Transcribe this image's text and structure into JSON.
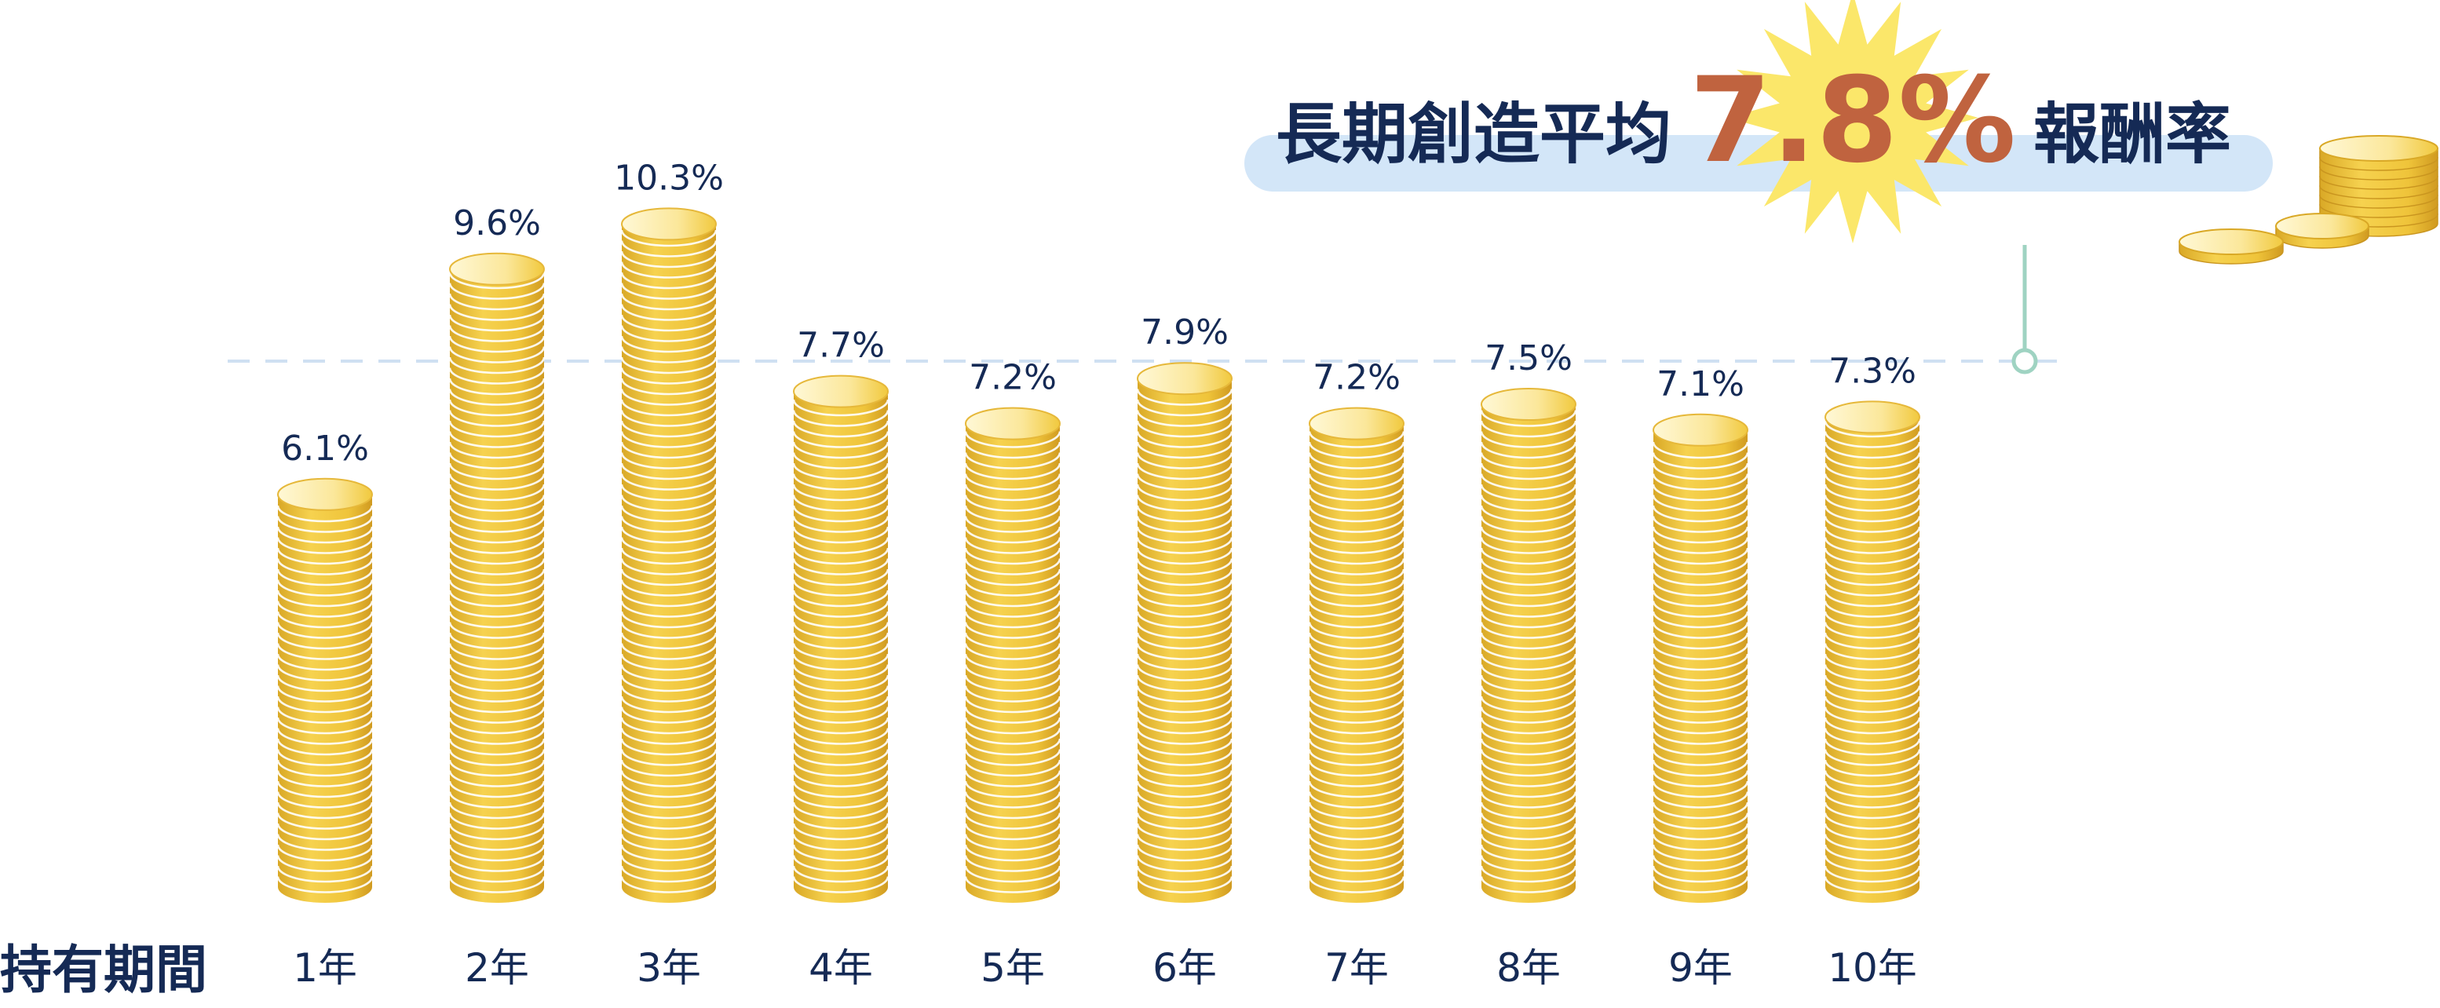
{
  "chart_data": {
    "type": "bar",
    "title": "長期創造平均 7.8% 報酬率",
    "title_parts": {
      "before": "長期創造平均",
      "highlight": "7.8%",
      "after": "報酬率"
    },
    "xlabel": "持有期間",
    "ylabel": "",
    "categories": [
      "1年",
      "2年",
      "3年",
      "4年",
      "5年",
      "6年",
      "7年",
      "8年",
      "9年",
      "10年"
    ],
    "values": [
      6.1,
      9.6,
      10.3,
      7.7,
      7.2,
      7.9,
      7.2,
      7.5,
      7.1,
      7.3
    ],
    "value_labels": [
      "6.1%",
      "9.6%",
      "10.3%",
      "7.7%",
      "7.2%",
      "7.9%",
      "7.2%",
      "7.5%",
      "7.1%",
      "7.3%"
    ],
    "average_line": 7.8,
    "ylim": [
      0,
      11
    ],
    "grid": false,
    "legend": "none"
  },
  "colors": {
    "coin": "#f1c93e",
    "coin_light": "#fbe79a",
    "coin_dark": "#d9a826",
    "text_navy": "#152a55",
    "highlight_number": "#c0633f",
    "banner": "#d3e6f8",
    "starburst": "#fbe76a",
    "average_line": "#cfe0f2",
    "marker": "#9fd3c2"
  }
}
